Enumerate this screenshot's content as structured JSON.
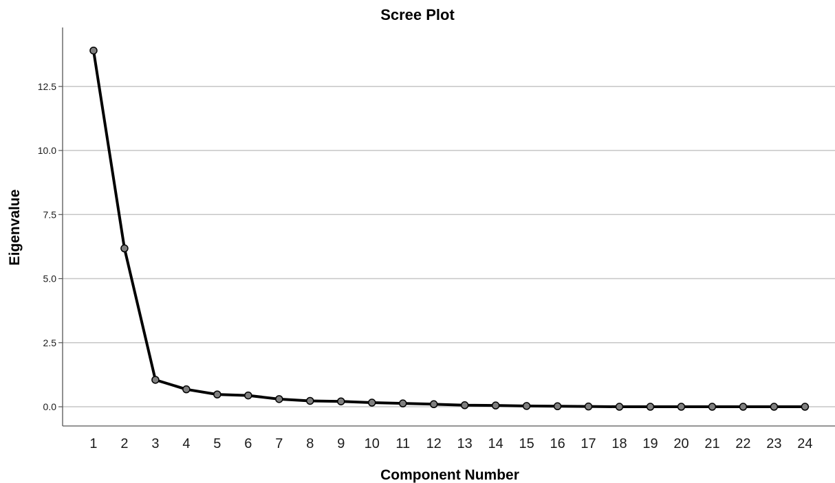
{
  "chart_data": {
    "type": "line",
    "title": "Scree Plot",
    "xlabel": "Component Number",
    "ylabel": "Eigenvalue",
    "x": [
      1,
      2,
      3,
      4,
      5,
      6,
      7,
      8,
      9,
      10,
      11,
      12,
      13,
      14,
      15,
      16,
      17,
      18,
      19,
      20,
      21,
      22,
      23,
      24
    ],
    "x_tick_labels": [
      "1",
      "2",
      "3",
      "4",
      "5",
      "6",
      "7",
      "8",
      "9",
      "10",
      "11",
      "12",
      "13",
      "14",
      "15",
      "16",
      "17",
      "18",
      "19",
      "20",
      "21",
      "22",
      "23",
      "24"
    ],
    "series": [
      {
        "values": [
          13.9,
          6.18,
          1.05,
          0.68,
          0.48,
          0.44,
          0.3,
          0.23,
          0.21,
          0.16,
          0.13,
          0.1,
          0.06,
          0.05,
          0.03,
          0.02,
          0.01,
          0.0,
          0.0,
          0.0,
          0.0,
          0.0,
          0.0,
          0.0
        ]
      }
    ],
    "y_ticks": [
      0.0,
      2.5,
      5.0,
      7.5,
      10.0,
      12.5
    ],
    "y_tick_labels": [
      "0.0",
      "2.5",
      "5.0",
      "7.5",
      "10.0",
      "12.5"
    ],
    "xlim": [
      0,
      24.97
    ],
    "ylim": [
      -0.75,
      14.8
    ],
    "grid": "horizontal",
    "colors": {
      "line": "#000000",
      "marker_fill": "#7f7f7f",
      "gridline": "#c6c6c6",
      "axis": "#555555"
    }
  }
}
